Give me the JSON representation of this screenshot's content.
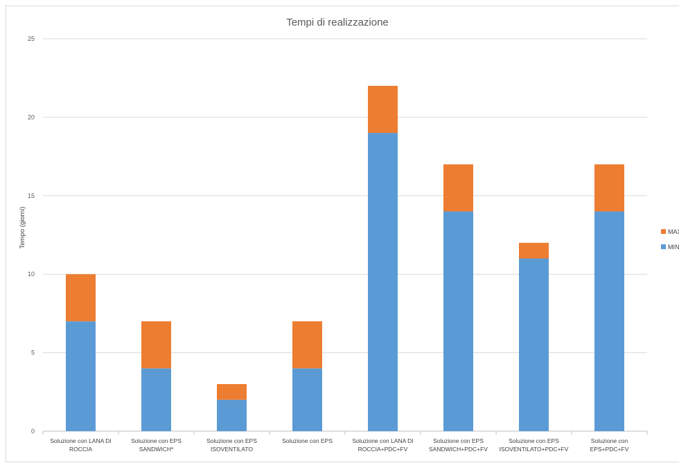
{
  "chart_data": {
    "type": "bar",
    "stacked": true,
    "title": "Tempi di realizzazione",
    "xlabel": "",
    "ylabel": "Tempo (giorni)",
    "ylim": [
      0,
      25
    ],
    "yticks": [
      0,
      5,
      10,
      15,
      20,
      25
    ],
    "grid": true,
    "legend_position": "right",
    "categories": [
      [
        "Soluzione con LANA DI",
        "ROCCIA"
      ],
      [
        "Soluzione con EPS",
        "SANDWICH*"
      ],
      [
        "Soluzione con EPS",
        "ISOVENTILATO"
      ],
      [
        "Soluzione con EPS",
        ""
      ],
      [
        "Soluzione con LANA DI",
        "ROCCIA+PDC+FV"
      ],
      [
        "Soluzione con EPS",
        "SANDWICH+PDC+FV"
      ],
      [
        "Soluzione con EPS",
        "ISOVENTILATO+PDC+FV"
      ],
      [
        "Soluzione con",
        "EPS+PDC+FV"
      ]
    ],
    "series": [
      {
        "name": "MIN",
        "color": "#5b9bd5",
        "values": [
          7,
          4,
          2,
          4,
          19,
          14,
          11,
          14
        ]
      },
      {
        "name": "MAX",
        "color": "#ed7d31",
        "values": [
          3,
          3,
          1,
          3,
          3,
          3,
          1,
          3
        ]
      }
    ],
    "legend": [
      "MAX",
      "MIN"
    ]
  }
}
